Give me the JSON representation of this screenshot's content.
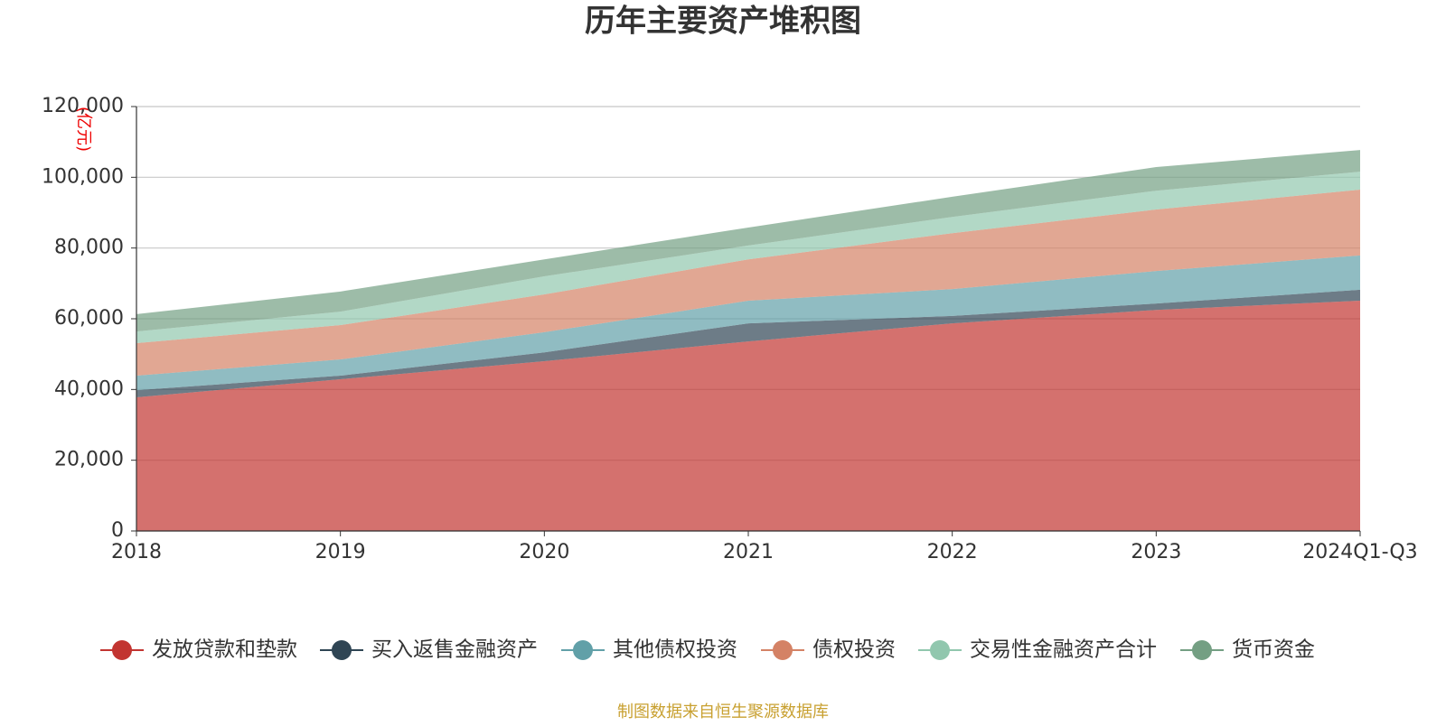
{
  "chart_data": {
    "type": "stacked-area",
    "title": "历年主要资产堆积图",
    "y_unit": "(亿元)",
    "source": "制图数据来自恒生聚源数据库",
    "categories": [
      "2018",
      "2019",
      "2020",
      "2021",
      "2022",
      "2023",
      "2024Q1-Q3"
    ],
    "ylim": [
      0,
      120000
    ],
    "yticks": [
      0,
      {
        "value": 20000,
        "label": "20,000"
      },
      {
        "value": 40000,
        "label": "40,000"
      },
      {
        "value": 60000,
        "label": "60,000"
      },
      {
        "value": 80000,
        "label": "80,000"
      },
      {
        "value": 100000,
        "label": "100,000"
      },
      {
        "value": 120000,
        "label": "120,000"
      }
    ],
    "grid": true,
    "series": [
      {
        "name": "发放贷款和垫款",
        "color": "#c23531",
        "values": [
          37800,
          42900,
          48000,
          53600,
          58700,
          62500,
          65100
        ]
      },
      {
        "name": "买入返售金融资产",
        "color": "#2f4554",
        "values": [
          2000,
          1000,
          2500,
          5100,
          2100,
          1800,
          3100
        ]
      },
      {
        "name": "其他债权投资",
        "color": "#61a0a8",
        "values": [
          4100,
          4600,
          5700,
          6400,
          7600,
          9200,
          9700
        ]
      },
      {
        "name": "债权投资",
        "color": "#d48265",
        "values": [
          9200,
          9700,
          10700,
          11700,
          15800,
          17400,
          18600
        ]
      },
      {
        "name": "交易性金融资产合计",
        "color": "#91c7ae",
        "values": [
          3300,
          3800,
          5100,
          3900,
          4600,
          5300,
          5100
        ]
      },
      {
        "name": "货币资金",
        "color": "#749f83",
        "values": [
          4900,
          5700,
          4800,
          5100,
          5700,
          6700,
          6100
        ]
      }
    ]
  }
}
